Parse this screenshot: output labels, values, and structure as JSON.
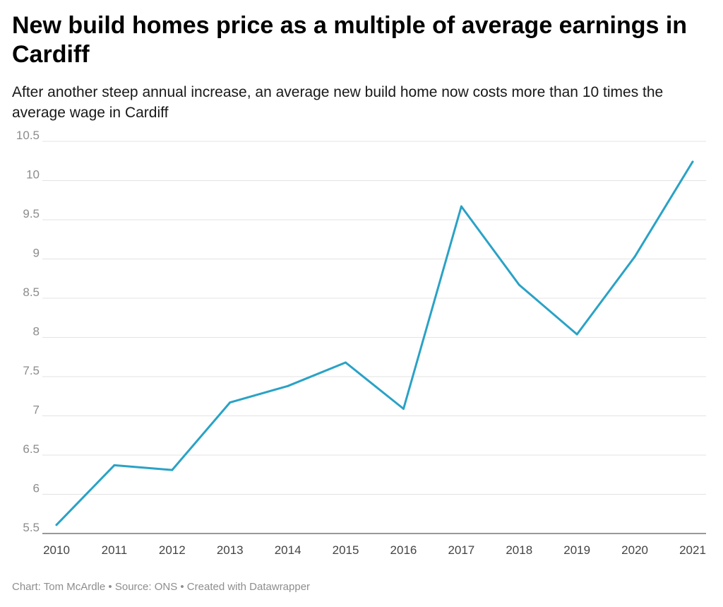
{
  "header": {
    "title": "New build homes price as a multiple of average earnings in Cardiff",
    "subtitle": "After another steep annual increase, an average new build home now costs more than 10 times the average wage in Cardiff"
  },
  "footer": {
    "credit": "Chart: Tom McArdle • Source: ONS • Created with Datawrapper"
  },
  "chart_data": {
    "type": "line",
    "title": "New build homes price as a multiple of average earnings in Cardiff",
    "subtitle": "After another steep annual increase, an average new build home now costs more than 10 times the average wage in Cardiff",
    "xlabel": "",
    "ylabel": "",
    "x": [
      "2010",
      "2011",
      "2012",
      "2013",
      "2014",
      "2015",
      "2016",
      "2017",
      "2018",
      "2019",
      "2020",
      "2021"
    ],
    "series": [
      {
        "values": [
          5.61,
          6.37,
          6.31,
          7.17,
          7.38,
          7.68,
          7.09,
          9.67,
          8.67,
          8.04,
          9.03,
          10.24
        ],
        "color": "#2aa2c6"
      }
    ],
    "ylim": [
      5.5,
      10.5
    ],
    "yticks": [
      "5.5",
      "6",
      "6.5",
      "7",
      "7.5",
      "8",
      "8.5",
      "9",
      "9.5",
      "10",
      "10.5"
    ],
    "grid": true,
    "legend": "none"
  }
}
